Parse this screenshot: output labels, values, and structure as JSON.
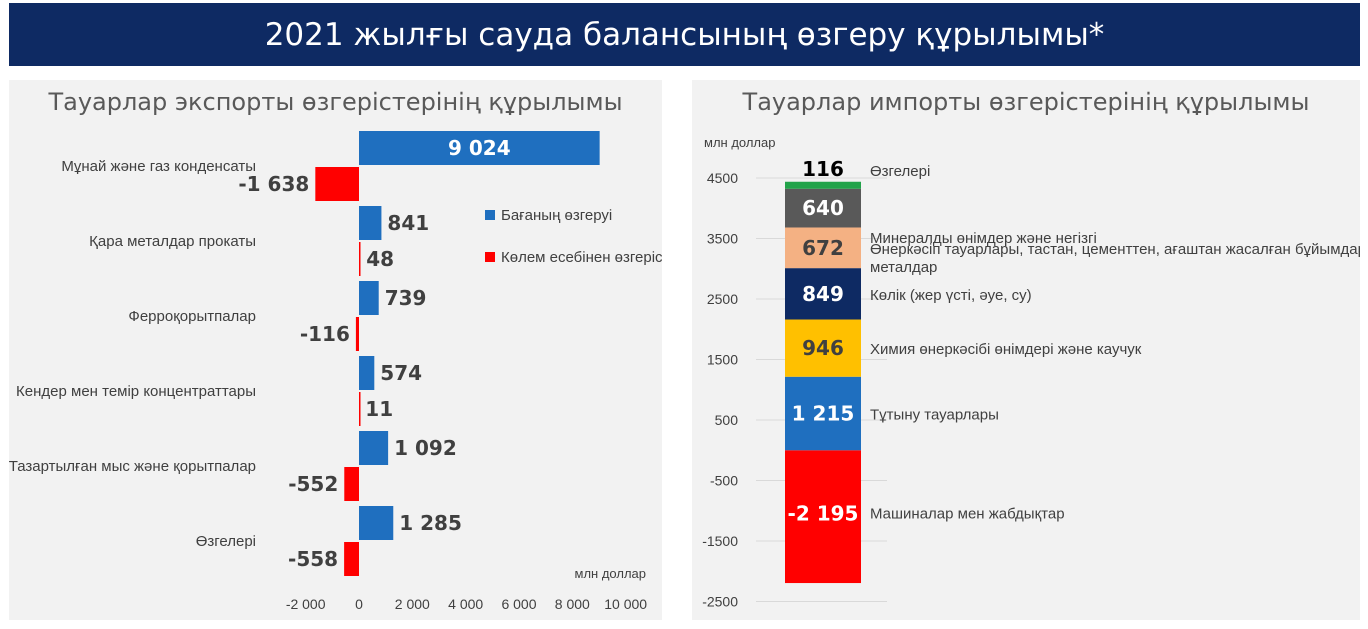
{
  "header": {
    "title": "2021 жылғы сауда балансының өзгеру құрылымы*"
  },
  "chart_data": [
    {
      "type": "bar",
      "orientation": "horizontal",
      "title": "Тауарлар экспорты өзгерістерінің құрылымы",
      "categories": [
        "Мұнай және газ конденсаты",
        "Қара металдар прокаты",
        "Ферроқорытпалар",
        "Кендер мен темір концентраттары",
        "Тазартылған мыс және қорытпалар",
        "Өзгелері"
      ],
      "series": [
        {
          "name": "Бағаның өзгеруі",
          "color": "#1f6fbf",
          "values": [
            9024,
            841,
            739,
            574,
            1092,
            1285
          ],
          "labels": [
            "9 024",
            "841",
            "739",
            "574",
            "1 092",
            "1 285"
          ]
        },
        {
          "name": "Көлем есебінен өзгеріс",
          "color": "#ff0000",
          "values": [
            -1638,
            48,
            -116,
            11,
            -552,
            -558
          ],
          "labels": [
            "-1 638",
            "48",
            "-116",
            "11",
            "-552",
            "-558"
          ]
        }
      ],
      "xlim": [
        -2000,
        10000
      ],
      "x_ticks": [
        -2000,
        0,
        2000,
        4000,
        6000,
        8000,
        10000
      ],
      "x_tick_labels": [
        "-2 000",
        "0",
        "2 000",
        "4 000",
        "6 000",
        "8 000",
        "10 000"
      ],
      "unit_label": "млн доллар",
      "legend_position": "right"
    },
    {
      "type": "bar",
      "stacked": true,
      "title": "Тауарлар импорты өзгерістерінің құрылымы",
      "unit_label": "млн доллар",
      "ylim": [
        -2500,
        4500
      ],
      "y_ticks": [
        4500,
        3500,
        2500,
        1500,
        500,
        -500,
        -1500,
        -2500
      ],
      "segments": [
        {
          "name": "Машиналар мен жабдықтар",
          "value": -2195,
          "label": "-2 195",
          "color": "#ff0000",
          "text_color": "#ffffff"
        },
        {
          "name": "Тұтыну тауарлары",
          "value": 1215,
          "label": "1 215",
          "color": "#1f6fbf",
          "text_color": "#ffffff"
        },
        {
          "name": "Химия өнеркәсібі өнімдері және каучук",
          "value": 946,
          "label": "946",
          "color": "#ffc000",
          "text_color": "#404040"
        },
        {
          "name": "Көлік (жер үсті, әуе, су)",
          "value": 849,
          "label": "849",
          "color": "#0e2a63",
          "text_color": "#ffffff"
        },
        {
          "name": "Өнеркәсіп тауарлары, тастан, цементтен, ағаштан жасалған бұйымдар",
          "value": 672,
          "label": "672",
          "color": "#f4b183",
          "text_color": "#404040"
        },
        {
          "name": "Минералды өнімдер және негізгі металдар",
          "value": 640,
          "label": "640",
          "color": "#595959",
          "text_color": "#ffffff"
        },
        {
          "name": "Өзгелері",
          "value": 116,
          "label": "116",
          "color": "#22a34a",
          "text_color": "#404040"
        }
      ]
    }
  ]
}
